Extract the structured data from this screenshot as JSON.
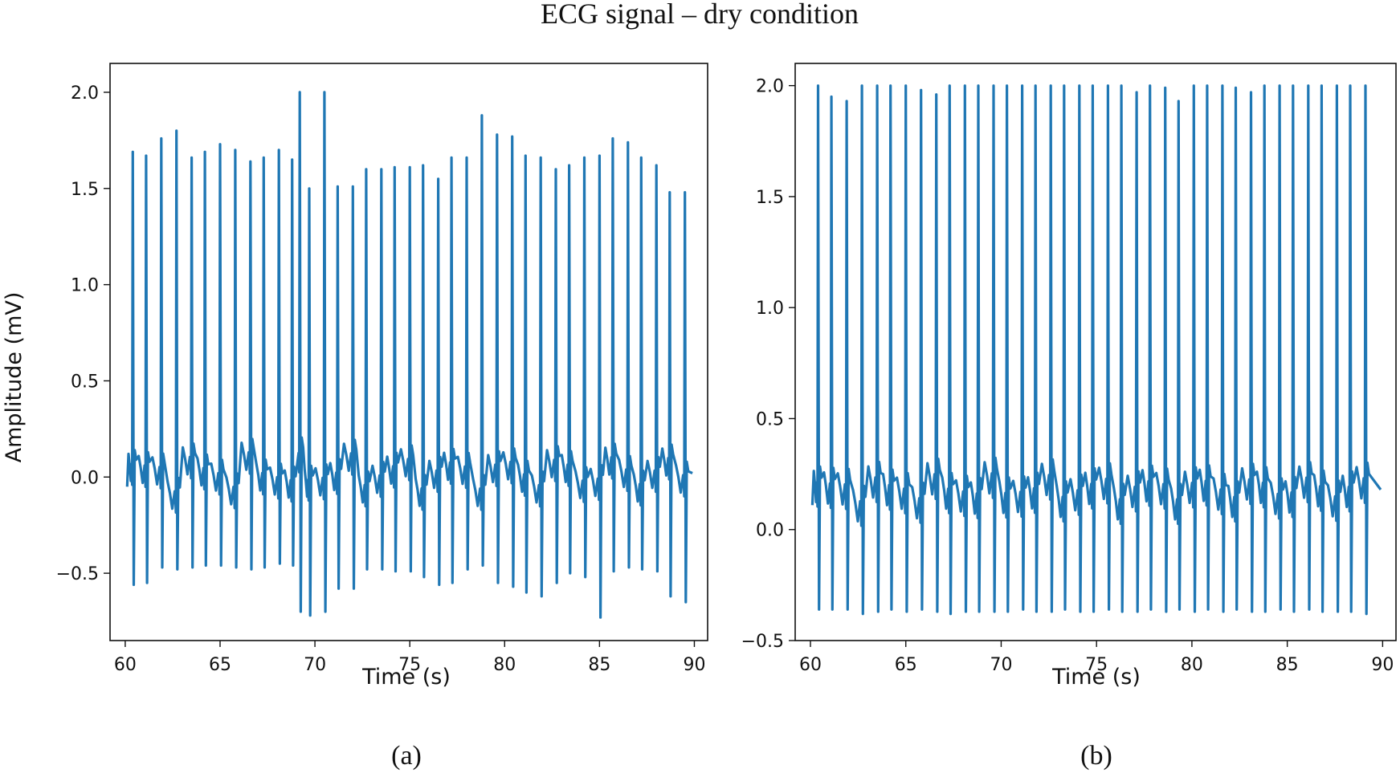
{
  "figure": {
    "title": "ECG signal – dry condition",
    "color": "#1f77b4"
  },
  "chart_data": [
    {
      "type": "line",
      "caption": "(a)",
      "title": "",
      "xlabel": "Time (s)",
      "ylabel": "Amplitude (mV)",
      "xlim": [
        59.2,
        90.7
      ],
      "ylim": [
        -0.85,
        2.15
      ],
      "xticks": [
        60,
        65,
        70,
        75,
        80,
        85,
        90
      ],
      "yticks": [
        -0.5,
        0.0,
        0.5,
        1.0,
        1.5,
        2.0
      ],
      "grid": false,
      "series": [
        {
          "name": "ECG",
          "description": "R-peak times and amplitudes read from the trace",
          "beat_times": [
            60.4,
            61.1,
            61.9,
            62.7,
            63.5,
            64.2,
            65.0,
            65.8,
            66.6,
            67.3,
            68.1,
            68.8,
            69.2,
            69.7,
            70.5,
            71.2,
            72.0,
            72.7,
            73.5,
            74.2,
            75.0,
            75.7,
            76.5,
            77.2,
            78.0,
            78.8,
            79.6,
            80.4,
            81.1,
            81.9,
            82.7,
            83.4,
            84.2,
            85.0,
            85.7,
            86.5,
            87.2,
            88.0,
            88.7,
            89.5
          ],
          "peak_values": [
            1.69,
            1.67,
            1.76,
            1.8,
            1.66,
            1.69,
            1.73,
            1.7,
            1.64,
            1.66,
            1.7,
            1.65,
            2.0,
            1.5,
            2.0,
            1.51,
            1.51,
            1.6,
            1.6,
            1.61,
            1.61,
            1.62,
            1.55,
            1.66,
            1.66,
            1.88,
            1.78,
            1.77,
            1.67,
            1.66,
            1.6,
            1.62,
            1.66,
            1.67,
            1.76,
            1.74,
            1.66,
            1.62,
            1.48,
            1.48
          ],
          "trough_values": [
            -0.56,
            -0.55,
            -0.47,
            -0.48,
            -0.47,
            -0.46,
            -0.46,
            -0.47,
            -0.48,
            -0.47,
            -0.45,
            -0.46,
            -0.7,
            -0.72,
            -0.7,
            -0.58,
            -0.58,
            -0.48,
            -0.48,
            -0.49,
            -0.49,
            -0.52,
            -0.56,
            -0.55,
            -0.48,
            -0.46,
            -0.55,
            -0.57,
            -0.6,
            -0.62,
            -0.55,
            -0.5,
            -0.52,
            -0.73,
            -0.49,
            -0.47,
            -0.48,
            -0.49,
            -0.62,
            -0.65
          ],
          "baseline": 0.0
        }
      ]
    },
    {
      "type": "line",
      "caption": "(b)",
      "title": "",
      "xlabel": "Time (s)",
      "ylabel": "",
      "xlim": [
        59.2,
        90.7
      ],
      "ylim": [
        -0.5,
        2.1
      ],
      "xticks": [
        60,
        65,
        70,
        75,
        80,
        85,
        90
      ],
      "yticks": [
        -0.5,
        0.0,
        0.5,
        1.0,
        1.5,
        2.0
      ],
      "grid": false,
      "series": [
        {
          "name": "ECG",
          "description": "R-peak times and amplitudes read from the trace",
          "beat_times": [
            60.4,
            61.1,
            61.9,
            62.7,
            63.5,
            64.2,
            65.0,
            65.8,
            66.6,
            67.3,
            68.1,
            68.8,
            69.6,
            70.3,
            71.1,
            71.8,
            72.6,
            73.3,
            74.1,
            74.8,
            75.6,
            76.3,
            77.1,
            77.8,
            78.6,
            79.3,
            80.1,
            80.8,
            81.6,
            82.3,
            83.1,
            83.8,
            84.6,
            85.3,
            86.1,
            86.8,
            87.6,
            88.3,
            89.1
          ],
          "peak_values": [
            2.0,
            1.95,
            1.93,
            2.0,
            2.0,
            2.0,
            2.0,
            1.98,
            1.96,
            2.0,
            2.0,
            2.0,
            2.0,
            2.0,
            2.0,
            2.0,
            2.0,
            2.0,
            2.0,
            2.0,
            2.0,
            2.0,
            1.97,
            2.0,
            1.99,
            1.93,
            2.0,
            2.0,
            2.0,
            1.99,
            1.97,
            2.0,
            2.0,
            2.0,
            2.0,
            2.0,
            2.0,
            2.0,
            2.0
          ],
          "trough_values": [
            -0.36,
            -0.36,
            -0.36,
            -0.38,
            -0.37,
            -0.36,
            -0.37,
            -0.36,
            -0.37,
            -0.38,
            -0.37,
            -0.37,
            -0.37,
            -0.37,
            -0.36,
            -0.37,
            -0.37,
            -0.36,
            -0.37,
            -0.37,
            -0.36,
            -0.37,
            -0.37,
            -0.36,
            -0.37,
            -0.36,
            -0.37,
            -0.36,
            -0.37,
            -0.36,
            -0.37,
            -0.37,
            -0.36,
            -0.37,
            -0.36,
            -0.37,
            -0.37,
            -0.37,
            -0.38
          ],
          "baseline": 0.16
        }
      ]
    }
  ]
}
